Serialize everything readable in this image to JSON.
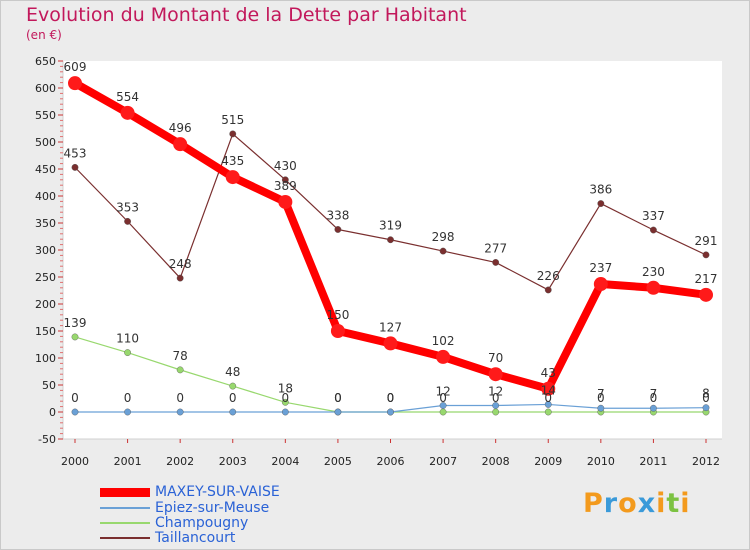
{
  "title": "Evolution du Montant de la Dette par Habitant",
  "subtitle": "(en €)",
  "chart_data": {
    "type": "line",
    "title": "Evolution du Montant de la Dette par Habitant",
    "ylabel": "(en €)",
    "xlabel": "",
    "ylim": [
      -50,
      650
    ],
    "yticks": [
      -50,
      0,
      50,
      100,
      150,
      200,
      250,
      300,
      350,
      400,
      450,
      500,
      550,
      600,
      650
    ],
    "categories": [
      "2000",
      "2001",
      "2002",
      "2003",
      "2004",
      "2005",
      "2006",
      "2007",
      "2008",
      "2009",
      "2010",
      "2011",
      "2012"
    ],
    "grid": false,
    "legend_position": "bottom-left",
    "series": [
      {
        "name": "MAXEY-SUR-VAISE",
        "color": "#ff0000",
        "values": [
          609,
          554,
          496,
          435,
          389,
          150,
          127,
          102,
          70,
          43,
          237,
          230,
          217
        ]
      },
      {
        "name": "Epiez-sur-Meuse",
        "color": "#6aa0d6",
        "values": [
          0,
          0,
          0,
          0,
          0,
          0,
          0,
          12,
          12,
          14,
          7,
          7,
          8
        ]
      },
      {
        "name": "Champougny",
        "color": "#98d86e",
        "values": [
          139,
          110,
          78,
          48,
          18,
          0,
          0,
          0,
          0,
          0,
          0,
          0,
          0
        ]
      },
      {
        "name": "Taillancourt",
        "color": "#7a2f2f",
        "values": [
          453,
          353,
          248,
          515,
          430,
          338,
          319,
          298,
          277,
          226,
          386,
          337,
          291
        ]
      }
    ]
  },
  "logo": {
    "letters": [
      "P",
      "r",
      "o",
      "x",
      "i",
      "t",
      "i"
    ],
    "colors": [
      "#f39a1d",
      "#3a9ad9",
      "#f39a1d",
      "#3a9ad9",
      "#f39a1d",
      "#7cc242",
      "#f39a1d"
    ]
  }
}
